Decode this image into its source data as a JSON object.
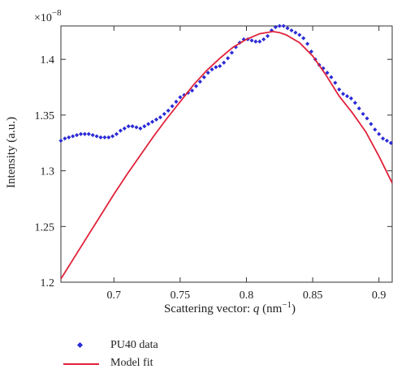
{
  "chart_data": {
    "type": "line",
    "ylabel": "Intensity (a.u.)",
    "xlabel_prefix": "Scattering vector: ",
    "xlabel_var": "q",
    "xlabel_unit_open": " (nm",
    "xlabel_unit_exp": "−1",
    "xlabel_unit_close": ")",
    "y_multiplier_base": "×10",
    "y_multiplier_exp": "−8",
    "xlim": [
      0.66,
      0.91
    ],
    "ylim": [
      1.2,
      1.43
    ],
    "x_ticks": [
      0.7,
      0.75,
      0.8,
      0.85,
      0.9
    ],
    "x_tick_labels": [
      "0.7",
      "0.75",
      "0.8",
      "0.85",
      "0.9"
    ],
    "y_ticks": [
      1.2,
      1.25,
      1.3,
      1.35,
      1.4
    ],
    "y_tick_labels": [
      "1.2",
      "1.25",
      "1.3",
      "1.35",
      "1.4"
    ],
    "series": [
      {
        "name": "PU40 data",
        "style": "points",
        "color": "#2a2ad6",
        "x": [
          0.66,
          0.663,
          0.666,
          0.669,
          0.672,
          0.675,
          0.678,
          0.681,
          0.684,
          0.687,
          0.69,
          0.693,
          0.696,
          0.699,
          0.702,
          0.705,
          0.708,
          0.711,
          0.714,
          0.717,
          0.72,
          0.723,
          0.726,
          0.729,
          0.732,
          0.735,
          0.738,
          0.741,
          0.744,
          0.747,
          0.75,
          0.753,
          0.756,
          0.759,
          0.762,
          0.765,
          0.768,
          0.771,
          0.774,
          0.777,
          0.78,
          0.783,
          0.786,
          0.789,
          0.792,
          0.795,
          0.798,
          0.801,
          0.804,
          0.807,
          0.81,
          0.813,
          0.816,
          0.819,
          0.822,
          0.825,
          0.828,
          0.831,
          0.834,
          0.837,
          0.84,
          0.843,
          0.846,
          0.849,
          0.852,
          0.855,
          0.858,
          0.861,
          0.864,
          0.867,
          0.87,
          0.873,
          0.876,
          0.879,
          0.882,
          0.885,
          0.888,
          0.891,
          0.894,
          0.897,
          0.9,
          0.903,
          0.906,
          0.909
        ],
        "y": [
          1.327,
          1.329,
          1.33,
          1.331,
          1.332,
          1.333,
          1.333,
          1.333,
          1.332,
          1.331,
          1.33,
          1.33,
          1.33,
          1.331,
          1.333,
          1.336,
          1.338,
          1.34,
          1.34,
          1.339,
          1.338,
          1.34,
          1.342,
          1.344,
          1.346,
          1.348,
          1.351,
          1.354,
          1.358,
          1.362,
          1.366,
          1.368,
          1.37,
          1.372,
          1.376,
          1.38,
          1.384,
          1.388,
          1.391,
          1.393,
          1.394,
          1.397,
          1.401,
          1.406,
          1.411,
          1.415,
          1.418,
          1.418,
          1.417,
          1.416,
          1.416,
          1.418,
          1.421,
          1.426,
          1.429,
          1.43,
          1.43,
          1.428,
          1.426,
          1.424,
          1.422,
          1.419,
          1.414,
          1.407,
          1.4,
          1.395,
          1.392,
          1.388,
          1.384,
          1.379,
          1.373,
          1.369,
          1.367,
          1.365,
          1.361,
          1.356,
          1.351,
          1.347,
          1.342,
          1.337,
          1.333,
          1.329,
          1.327,
          1.325
        ]
      },
      {
        "name": "Model fit",
        "style": "line",
        "color": "#e0223a",
        "x": [
          0.66,
          0.67,
          0.68,
          0.69,
          0.7,
          0.71,
          0.72,
          0.73,
          0.74,
          0.75,
          0.76,
          0.77,
          0.78,
          0.79,
          0.8,
          0.81,
          0.815,
          0.82,
          0.825,
          0.83,
          0.84,
          0.85,
          0.86,
          0.87,
          0.88,
          0.89,
          0.9,
          0.91
        ],
        "y": [
          1.203,
          1.222,
          1.241,
          1.26,
          1.279,
          1.297,
          1.314,
          1.331,
          1.347,
          1.362,
          1.377,
          1.39,
          1.401,
          1.411,
          1.418,
          1.423,
          1.424,
          1.425,
          1.424,
          1.422,
          1.415,
          1.403,
          1.386,
          1.367,
          1.352,
          1.335,
          1.313,
          1.289
        ]
      }
    ],
    "legend": {
      "position": "bottom-left, below plot",
      "entries": [
        "PU40 data",
        "Model fit"
      ]
    },
    "grid": false
  }
}
